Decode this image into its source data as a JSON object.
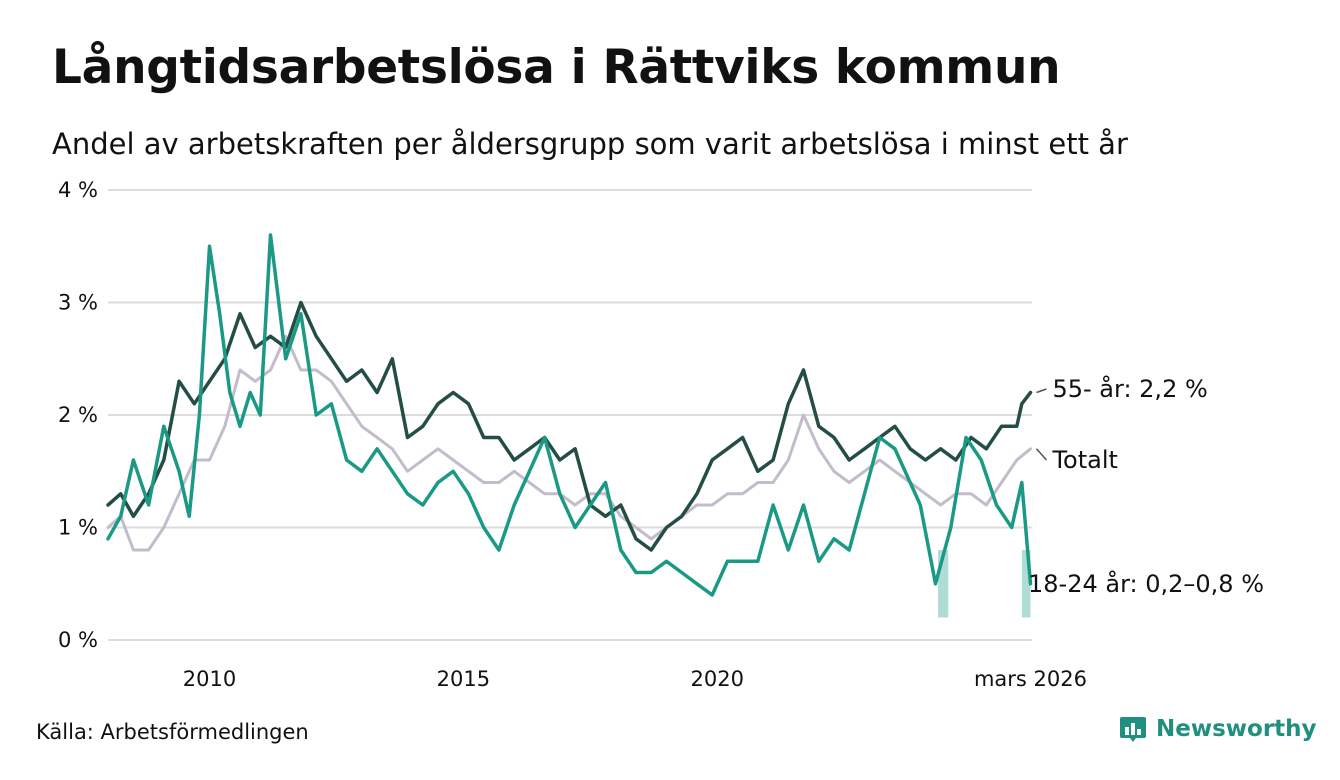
{
  "header": {
    "title": "Långtidsarbetslösa i Rättviks kommun",
    "subtitle": "Andel av arbetskraften per åldersgrupp som varit arbetslösa i minst ett år"
  },
  "footer": {
    "source": "Källa: Arbetsförmedlingen",
    "brand": "Newsworthy",
    "brand_color": "#1f8f7f"
  },
  "chart_data": {
    "type": "line",
    "title": "Långtidsarbetslösa i Rättviks kommun",
    "xlabel": "",
    "ylabel": "",
    "x_range": [
      2008.0,
      2026.2
    ],
    "ylim": [
      0,
      4
    ],
    "grid": true,
    "y_ticks": [
      {
        "value": 0,
        "label": "0 %"
      },
      {
        "value": 1,
        "label": "1 %"
      },
      {
        "value": 2,
        "label": "2 %"
      },
      {
        "value": 3,
        "label": "3 %"
      },
      {
        "value": 4,
        "label": "4 %"
      }
    ],
    "x_ticks": [
      {
        "value": 2010,
        "label": "2010"
      },
      {
        "value": 2015,
        "label": "2015"
      },
      {
        "value": 2020,
        "label": "2020"
      },
      {
        "value": 2026.17,
        "label": "mars 2026"
      }
    ],
    "series": [
      {
        "name": "Totalt",
        "label": "Totalt",
        "color": "#c2bccb",
        "x": [
          2008.0,
          2008.25,
          2008.5,
          2008.8,
          2009.1,
          2009.4,
          2009.7,
          2010.0,
          2010.3,
          2010.6,
          2010.9,
          2011.2,
          2011.5,
          2011.8,
          2012.1,
          2012.4,
          2012.7,
          2013.0,
          2013.3,
          2013.6,
          2013.9,
          2014.2,
          2014.5,
          2014.8,
          2015.1,
          2015.4,
          2015.7,
          2016.0,
          2016.3,
          2016.6,
          2016.9,
          2017.2,
          2017.5,
          2017.8,
          2018.1,
          2018.4,
          2018.7,
          2019.0,
          2019.3,
          2019.6,
          2019.9,
          2020.2,
          2020.5,
          2020.8,
          2021.1,
          2021.4,
          2021.7,
          2022.0,
          2022.3,
          2022.6,
          2022.9,
          2023.2,
          2023.5,
          2023.8,
          2024.1,
          2024.4,
          2024.7,
          2025.0,
          2025.3,
          2025.6,
          2025.9,
          2026.17
        ],
        "values": [
          1.0,
          1.1,
          0.8,
          0.8,
          1.0,
          1.3,
          1.6,
          1.6,
          1.9,
          2.4,
          2.3,
          2.4,
          2.7,
          2.4,
          2.4,
          2.3,
          2.1,
          1.9,
          1.8,
          1.7,
          1.5,
          1.6,
          1.7,
          1.6,
          1.5,
          1.4,
          1.4,
          1.5,
          1.4,
          1.3,
          1.3,
          1.2,
          1.3,
          1.3,
          1.1,
          1.0,
          0.9,
          1.0,
          1.1,
          1.2,
          1.2,
          1.3,
          1.3,
          1.4,
          1.4,
          1.6,
          2.0,
          1.7,
          1.5,
          1.4,
          1.5,
          1.6,
          1.5,
          1.4,
          1.3,
          1.2,
          1.3,
          1.3,
          1.2,
          1.4,
          1.6,
          1.7
        ],
        "end_label": "Totalt"
      },
      {
        "name": "55- år",
        "label": "55- år: 2,2 %",
        "color": "#234d45",
        "x": [
          2008.0,
          2008.25,
          2008.5,
          2008.8,
          2009.1,
          2009.4,
          2009.7,
          2010.0,
          2010.3,
          2010.6,
          2010.9,
          2011.2,
          2011.5,
          2011.8,
          2012.1,
          2012.4,
          2012.7,
          2013.0,
          2013.3,
          2013.6,
          2013.9,
          2014.2,
          2014.5,
          2014.8,
          2015.1,
          2015.4,
          2015.7,
          2016.0,
          2016.3,
          2016.6,
          2016.9,
          2017.2,
          2017.5,
          2017.8,
          2018.1,
          2018.4,
          2018.7,
          2019.0,
          2019.3,
          2019.6,
          2019.9,
          2020.2,
          2020.5,
          2020.8,
          2021.1,
          2021.4,
          2021.7,
          2022.0,
          2022.3,
          2022.6,
          2022.9,
          2023.2,
          2023.5,
          2023.8,
          2024.1,
          2024.4,
          2024.7,
          2025.0,
          2025.3,
          2025.6,
          2025.9,
          2026.0,
          2026.17
        ],
        "values": [
          1.2,
          1.3,
          1.1,
          1.3,
          1.6,
          2.3,
          2.1,
          2.3,
          2.5,
          2.9,
          2.6,
          2.7,
          2.6,
          3.0,
          2.7,
          2.5,
          2.3,
          2.4,
          2.2,
          2.5,
          1.8,
          1.9,
          2.1,
          2.2,
          2.1,
          1.8,
          1.8,
          1.6,
          1.7,
          1.8,
          1.6,
          1.7,
          1.2,
          1.1,
          1.2,
          0.9,
          0.8,
          1.0,
          1.1,
          1.3,
          1.6,
          1.7,
          1.8,
          1.5,
          1.6,
          2.1,
          2.4,
          1.9,
          1.8,
          1.6,
          1.7,
          1.8,
          1.9,
          1.7,
          1.6,
          1.7,
          1.6,
          1.8,
          1.7,
          1.9,
          1.9,
          2.1,
          2.2
        ],
        "end_label": "55- år: 2,2 %"
      },
      {
        "name": "18-24 år",
        "label": "18-24 år: 0,2–0,8 %",
        "color": "#1a9a85",
        "x": [
          2008.0,
          2008.25,
          2008.5,
          2008.8,
          2009.1,
          2009.4,
          2009.6,
          2009.8,
          2010.0,
          2010.2,
          2010.4,
          2010.6,
          2010.8,
          2011.0,
          2011.2,
          2011.5,
          2011.8,
          2012.1,
          2012.4,
          2012.7,
          2013.0,
          2013.3,
          2013.6,
          2013.9,
          2014.2,
          2014.5,
          2014.8,
          2015.1,
          2015.4,
          2015.7,
          2016.0,
          2016.3,
          2016.6,
          2016.9,
          2017.2,
          2017.5,
          2017.8,
          2018.1,
          2018.4,
          2018.7,
          2019.0,
          2019.3,
          2019.6,
          2019.9,
          2020.2,
          2020.5,
          2020.8,
          2021.1,
          2021.4,
          2021.7,
          2022.0,
          2022.3,
          2022.6,
          2022.9,
          2023.2,
          2023.5,
          2023.8,
          2024.0,
          2024.3,
          2024.6,
          2024.9,
          2025.2,
          2025.5,
          2025.8,
          2026.0,
          2026.17
        ],
        "values": [
          0.9,
          1.1,
          1.6,
          1.2,
          1.9,
          1.5,
          1.1,
          2.0,
          3.5,
          2.9,
          2.2,
          1.9,
          2.2,
          2.0,
          3.6,
          2.5,
          2.9,
          2.0,
          2.1,
          1.6,
          1.5,
          1.7,
          1.5,
          1.3,
          1.2,
          1.4,
          1.5,
          1.3,
          1.0,
          0.8,
          1.2,
          1.5,
          1.8,
          1.3,
          1.0,
          1.2,
          1.4,
          0.8,
          0.6,
          0.6,
          0.7,
          0.6,
          0.5,
          0.4,
          0.7,
          0.7,
          0.7,
          1.2,
          0.8,
          1.2,
          0.7,
          0.9,
          0.8,
          1.3,
          1.8,
          1.7,
          1.4,
          1.2,
          0.5,
          1.0,
          1.8,
          1.6,
          1.2,
          1.0,
          1.4,
          0.5
        ],
        "uncertainty": [
          {
            "x_start": 2024.35,
            "x_end": 2024.55,
            "low": 0.2,
            "high": 0.8
          },
          {
            "x_start": 2026.0,
            "x_end": 2026.17,
            "low": 0.2,
            "high": 0.8
          }
        ],
        "end_label": "18-24 år: 0,2–0,8 %"
      }
    ]
  }
}
